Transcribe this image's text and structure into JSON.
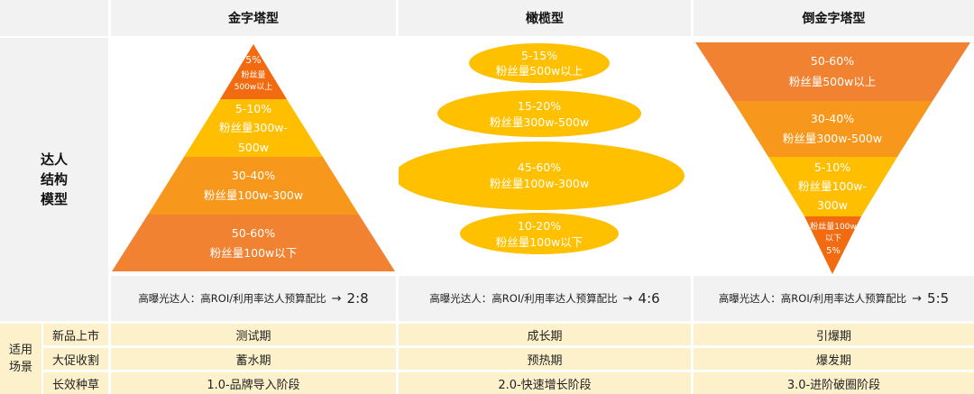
{
  "columns": [
    {
      "title": "金字塔型",
      "ratio_text": "高曝光达人：高ROI/利用率达人预算配比",
      "ratio_value": "2:8"
    },
    {
      "title": "橄榄型",
      "ratio_text": "高曝光达人：高ROI/利用率达人预算配比",
      "ratio_value": "4:6"
    },
    {
      "title": "倒金字塔型",
      "ratio_text": "高曝光达人：高ROI/利用率达人预算配比",
      "ratio_value": "5:5"
    }
  ],
  "row_label_model": [
    "达人",
    "结构",
    "模型"
  ],
  "row_label_scene": [
    "适用",
    "场景"
  ],
  "pyramid": [
    {
      "pct": "5%",
      "lines": [
        "粉丝量",
        "500w以上"
      ],
      "color": "#f26b10"
    },
    {
      "pct": "5-10%",
      "lines": [
        "粉丝量300w-",
        "500w"
      ],
      "color": "#ffbf00"
    },
    {
      "pct": "30-40%",
      "lines": [
        "粉丝量100w-300w"
      ],
      "color": "#f7981c"
    },
    {
      "pct": "50-60%",
      "lines": [
        "粉丝量100w以下"
      ],
      "color": "#f08232"
    }
  ],
  "olive": [
    {
      "pct": "5-15%",
      "lines": [
        "粉丝量500w以上"
      ],
      "color": "#ffc000"
    },
    {
      "pct": "15-20%",
      "lines": [
        "粉丝量300w-500w"
      ],
      "color": "#ffc000"
    },
    {
      "pct": "45-60%",
      "lines": [
        "粉丝量100w-300w"
      ],
      "color": "#ffc000"
    },
    {
      "pct": "10-20%",
      "lines": [
        "粉丝量100w以下"
      ],
      "color": "#ffc000"
    }
  ],
  "inverted": [
    {
      "pct": "50-60%",
      "lines": [
        "粉丝量500w以上"
      ],
      "color": "#f08232"
    },
    {
      "pct": "30-40%",
      "lines": [
        "粉丝量300w-500w"
      ],
      "color": "#f7981c"
    },
    {
      "pct": "5-10%",
      "lines": [
        "粉丝量100w-",
        "300w"
      ],
      "color": "#ffbf00"
    },
    {
      "pct": "5%",
      "lines": [
        "粉丝量100w",
        "以下"
      ],
      "color": "#f26b10"
    }
  ],
  "scenes": [
    {
      "label": "新品上市",
      "values": [
        "测试期",
        "成长期",
        "引爆期"
      ]
    },
    {
      "label": "大促收割",
      "values": [
        "蓄水期",
        "预热期",
        "爆发期"
      ]
    },
    {
      "label": "长效种草",
      "values": [
        "1.0-品牌导入阶段",
        "2.0-快速增长阶段",
        "3.0-进阶破圈阶段"
      ]
    }
  ]
}
